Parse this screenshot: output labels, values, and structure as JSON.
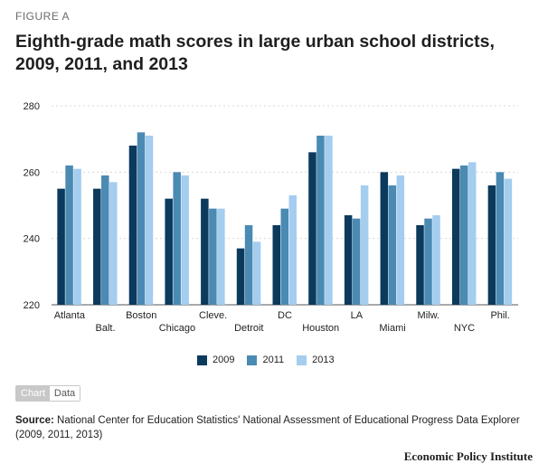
{
  "figure_label": "FIGURE A",
  "title": "Eighth-grade math scores in large urban school districts, 2009, 2011, and 2013",
  "toggle": {
    "chart_label": "Chart",
    "data_label": "Data"
  },
  "source": {
    "label": "Source:",
    "text": "National Center for Education Statistics' National Assessment of Educational Progress Data Explorer (2009, 2011, 2013)"
  },
  "brand": "Economic Policy Institute",
  "colors": {
    "2009": "#0b3a5c",
    "2011": "#4a8ab3",
    "2013": "#a4cdef",
    "grid": "#d9d9d9"
  },
  "chart_data": {
    "type": "bar",
    "title": "Eighth-grade math scores in large urban school districts, 2009, 2011, and 2013",
    "xlabel": "",
    "ylabel": "",
    "ylim": [
      220,
      280
    ],
    "yticks": [
      220,
      240,
      260,
      280
    ],
    "grid": true,
    "legend_position": "bottom",
    "categories": [
      "Atlanta",
      "Balt.",
      "Boston",
      "Chicago",
      "Cleve.",
      "Detroit",
      "DC",
      "Houston",
      "LA",
      "Miami",
      "Milw.",
      "NYC",
      "Phil."
    ],
    "series": [
      {
        "name": "2009",
        "values": [
          255,
          255,
          268,
          252,
          252,
          237,
          244,
          266,
          247,
          260,
          244,
          261,
          256
        ]
      },
      {
        "name": "2011",
        "values": [
          262,
          259,
          272,
          260,
          249,
          244,
          249,
          271,
          246,
          256,
          246,
          262,
          260
        ]
      },
      {
        "name": "2013",
        "values": [
          261,
          257,
          271,
          259,
          249,
          239,
          253,
          271,
          256,
          259,
          247,
          263,
          258
        ]
      }
    ]
  }
}
